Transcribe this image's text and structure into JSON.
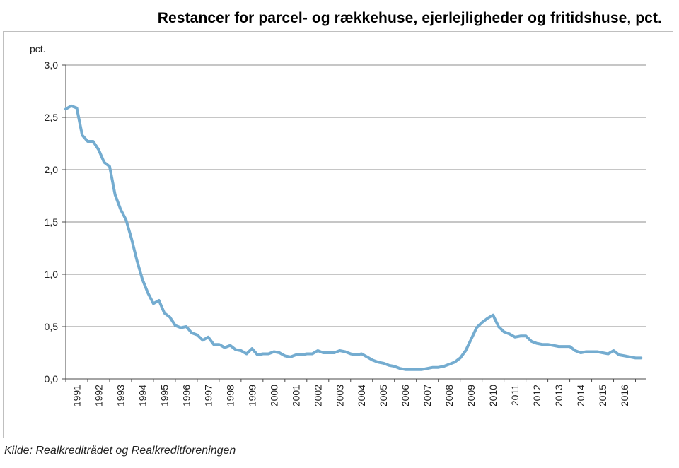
{
  "title": "Restancer for parcel- og rækkehuse, ejerlejligheder og fritidshuse, pct.",
  "source": "Kilde: Realkreditrådet og Realkreditforeningen",
  "colors": {
    "line": "#74acd0",
    "grid": "#8c8c8c",
    "axis": "#4a4a4a"
  },
  "chart_data": {
    "type": "line",
    "title": "Restancer for parcel- og rækkehuse, ejerlejligheder og fritidshuse, pct.",
    "ylabel": "pct.",
    "ylim": [
      0,
      3.0
    ],
    "yticks": [
      0,
      0.5,
      1.0,
      1.5,
      2.0,
      2.5,
      3.0
    ],
    "ytick_labels": [
      "0,0",
      "0,5",
      "1,0",
      "1,5",
      "2,0",
      "2,5",
      "3,0"
    ],
    "xlim": [
      1990.0,
      2016.5
    ],
    "xtick_labels": [
      "1991",
      "1992",
      "1993",
      "1994",
      "1995",
      "1996",
      "1997",
      "1998",
      "1999",
      "2000",
      "2001",
      "2002",
      "2003",
      "2004",
      "2005",
      "2006",
      "2007",
      "2008",
      "2009",
      "2010",
      "2011",
      "2012",
      "2013",
      "2014",
      "2015",
      "2016"
    ],
    "grid": "horizontal",
    "series": [
      {
        "x": [
          1990.0,
          1990.25,
          1990.5,
          1990.75,
          1991.0,
          1991.25,
          1991.5,
          1991.75,
          1992.0,
          1992.25,
          1992.5,
          1992.75,
          1993.0,
          1993.25,
          1993.5,
          1993.75,
          1994.0,
          1994.25,
          1994.5,
          1994.75,
          1995.0,
          1995.25,
          1995.5,
          1995.75,
          1996.0,
          1996.25,
          1996.5,
          1996.75,
          1997.0,
          1997.25,
          1997.5,
          1997.75,
          1998.0,
          1998.25,
          1998.5,
          1998.75,
          1999.0,
          1999.25,
          1999.5,
          1999.75,
          2000.0,
          2000.25,
          2000.5,
          2000.75,
          2001.0,
          2001.25,
          2001.5,
          2001.75,
          2002.0,
          2002.25,
          2002.5,
          2002.75,
          2003.0,
          2003.25,
          2003.5,
          2003.75,
          2004.0,
          2004.25,
          2004.5,
          2004.75,
          2005.0,
          2005.25,
          2005.5,
          2005.75,
          2006.0,
          2006.25,
          2006.5,
          2006.75,
          2007.0,
          2007.25,
          2007.5,
          2007.75,
          2008.0,
          2008.25,
          2008.5,
          2008.75,
          2009.0,
          2009.25,
          2009.5,
          2009.75,
          2010.0,
          2010.25,
          2010.5,
          2010.75,
          2011.0,
          2011.25,
          2011.5,
          2011.75,
          2012.0,
          2012.25,
          2012.5,
          2012.75,
          2013.0,
          2013.25,
          2013.5,
          2013.75,
          2014.0,
          2014.25,
          2014.5,
          2014.75,
          2015.0,
          2015.25,
          2015.5,
          2015.75,
          2016.0,
          2016.25
        ],
        "values": [
          2.58,
          2.61,
          2.59,
          2.33,
          2.27,
          2.27,
          2.19,
          2.07,
          2.03,
          1.76,
          1.62,
          1.52,
          1.34,
          1.13,
          0.95,
          0.82,
          0.72,
          0.75,
          0.63,
          0.59,
          0.51,
          0.49,
          0.5,
          0.44,
          0.42,
          0.37,
          0.4,
          0.33,
          0.33,
          0.3,
          0.32,
          0.28,
          0.27,
          0.24,
          0.29,
          0.23,
          0.24,
          0.24,
          0.26,
          0.25,
          0.22,
          0.21,
          0.23,
          0.23,
          0.24,
          0.24,
          0.27,
          0.25,
          0.25,
          0.25,
          0.27,
          0.26,
          0.24,
          0.23,
          0.24,
          0.21,
          0.18,
          0.16,
          0.15,
          0.13,
          0.12,
          0.1,
          0.09,
          0.09,
          0.09,
          0.09,
          0.1,
          0.11,
          0.11,
          0.12,
          0.14,
          0.16,
          0.2,
          0.27,
          0.38,
          0.49,
          0.54,
          0.58,
          0.61,
          0.5,
          0.45,
          0.43,
          0.4,
          0.41,
          0.41,
          0.36,
          0.34,
          0.33,
          0.33,
          0.32,
          0.31,
          0.31,
          0.31,
          0.27,
          0.25,
          0.26,
          0.26,
          0.26,
          0.25,
          0.24,
          0.27,
          0.23,
          0.22,
          0.21,
          0.2,
          0.2
        ]
      }
    ]
  }
}
